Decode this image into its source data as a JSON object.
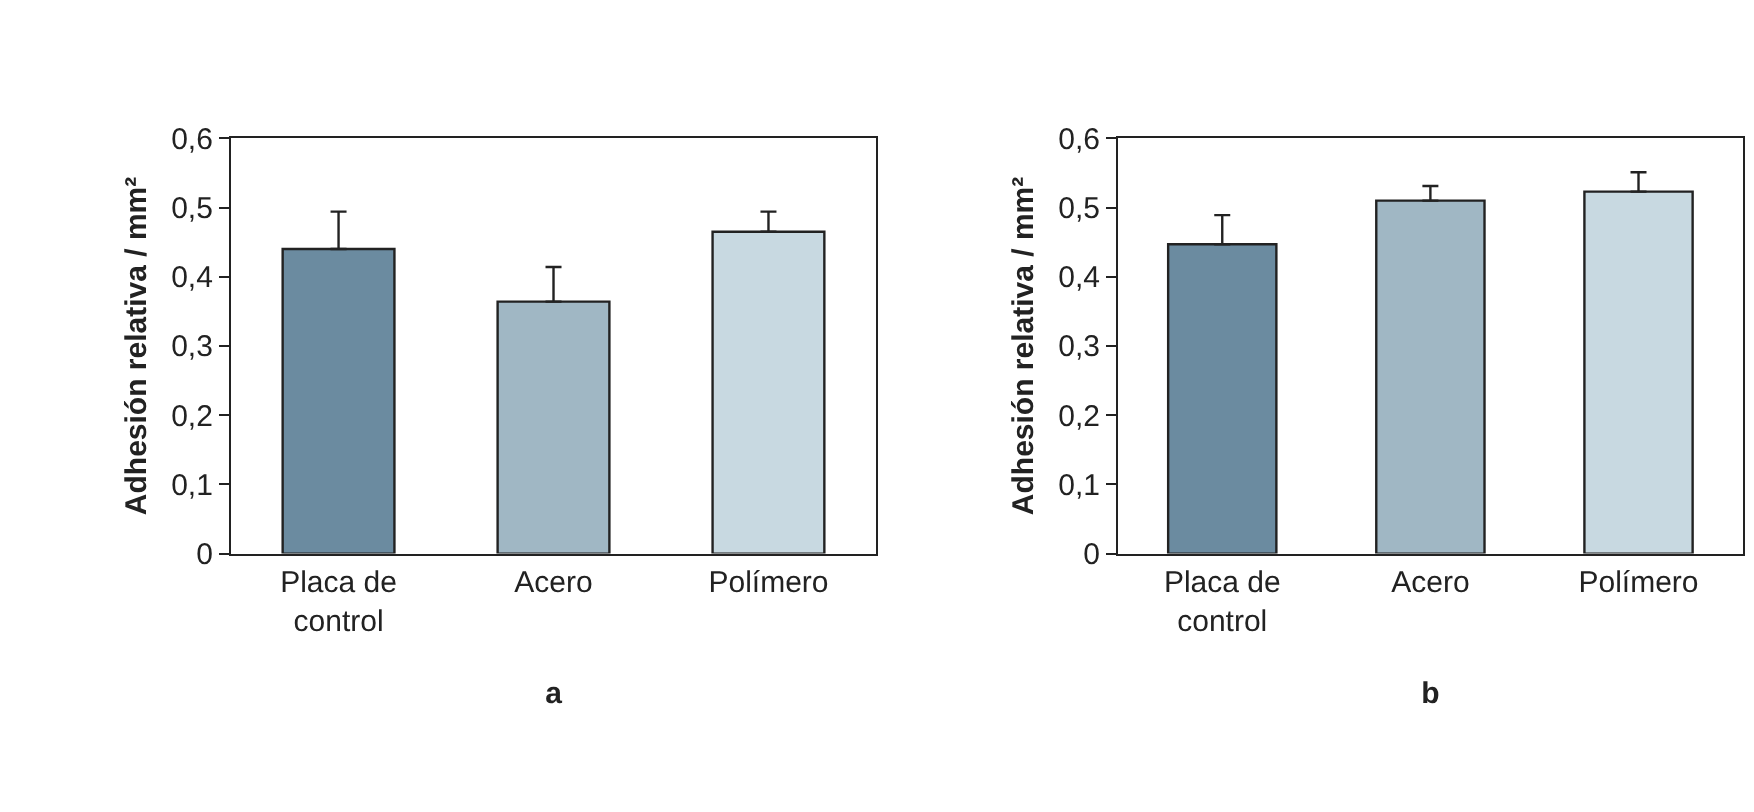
{
  "chart_data": [
    {
      "type": "bar",
      "xlabel": "a",
      "ylabel": "Adhesión relativa / mm²",
      "categories": [
        "Placa de control",
        "Acero",
        "Polímero"
      ],
      "values": [
        0.44,
        0.364,
        0.465
      ],
      "colors": [
        "#6b8ba0",
        "#a0b7c4",
        "#c8d9e1"
      ],
      "errors": [
        [
          0.44,
          0.494
        ],
        [
          0.364,
          0.414
        ],
        [
          0.465,
          0.494
        ]
      ],
      "ylim": [
        0,
        0.6
      ],
      "yticks": [
        0,
        {
          "value": 0.1,
          "label": "0,1"
        },
        {
          "value": 0.2,
          "label": "0,2"
        },
        {
          "value": 0.3,
          "label": "0,3"
        },
        {
          "value": 0.4,
          "label": "0,4"
        },
        {
          "value": 0.5,
          "label": "0,5"
        },
        {
          "value": 0.6,
          "label": "0,6"
        }
      ],
      "grid": false
    },
    {
      "type": "bar",
      "xlabel": "b",
      "ylabel": "Adhesión relativa / mm²",
      "categories": [
        "Placa de control",
        "Acero",
        "Polímero"
      ],
      "values": [
        0.447,
        0.51,
        0.523
      ],
      "colors": [
        "#6b8ba0",
        "#a0b7c4",
        "#c8d9e1"
      ],
      "errors": [
        [
          0.447,
          0.489
        ],
        [
          0.51,
          0.531
        ],
        [
          0.523,
          0.551
        ]
      ],
      "ylim": [
        0,
        0.6
      ],
      "yticks": [
        0,
        {
          "value": 0.1,
          "label": "0,1"
        },
        {
          "value": 0.2,
          "label": "0,2"
        },
        {
          "value": 0.3,
          "label": "0,3"
        },
        {
          "value": 0.4,
          "label": "0,4"
        },
        {
          "value": 0.5,
          "label": "0,5"
        },
        {
          "value": 0.6,
          "label": "0,6"
        }
      ],
      "grid": false
    }
  ]
}
